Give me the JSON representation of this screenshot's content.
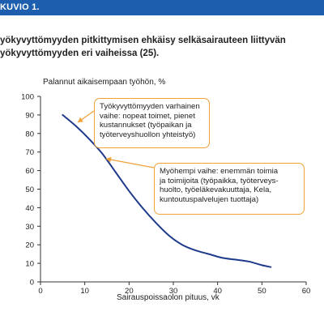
{
  "header": {
    "label": "KUVIO 1."
  },
  "figure_title": {
    "line1": "yökyvyttömyyden pitkittymisen ehkäisy selkäsairauteen liittyvän",
    "line2": "yökyvyttömyyden eri vaiheissa (25)."
  },
  "annotations": {
    "early": {
      "lines": [
        "Työkyvyttömyyden varhainen",
        "vaihe: nopeat toimet, pienet",
        "kustannukset (työpaikan ja",
        "työterveyshuollon yhteistyö)"
      ]
    },
    "late": {
      "lines": [
        "Myöhempi vaihe: enemmän toimia",
        "ja toimijoita (työpaikka, työterveys-",
        "huolto, työeläkevakuuttaja, Kela,",
        "kuntoutuspalvelujen tuottaja)"
      ]
    }
  },
  "colors": {
    "header": "#1d5fae",
    "line": "#1e3a8a",
    "annotation_border": "#f0a23b",
    "arrow": "#f0a23b"
  },
  "chart_data": {
    "type": "line",
    "ylabel": "Palannut aikaisempaan työhön, %",
    "xlabel": "Sairauspoissaolon pituus, vk",
    "xlim": [
      0,
      60
    ],
    "ylim": [
      0,
      100
    ],
    "x_ticks": [
      0,
      10,
      20,
      30,
      40,
      50,
      60
    ],
    "y_ticks": [
      0,
      10,
      20,
      30,
      40,
      50,
      60,
      70,
      80,
      90,
      100
    ],
    "grid": false,
    "series": [
      {
        "x": [
          5,
          8,
          11,
          14,
          17,
          20,
          23,
          26,
          29,
          32,
          35,
          38,
          41,
          44,
          47,
          50,
          52
        ],
        "values": [
          90,
          84,
          77,
          69,
          59,
          49,
          40,
          32,
          25,
          20,
          17,
          15,
          13,
          12,
          11,
          9,
          8
        ]
      }
    ]
  }
}
